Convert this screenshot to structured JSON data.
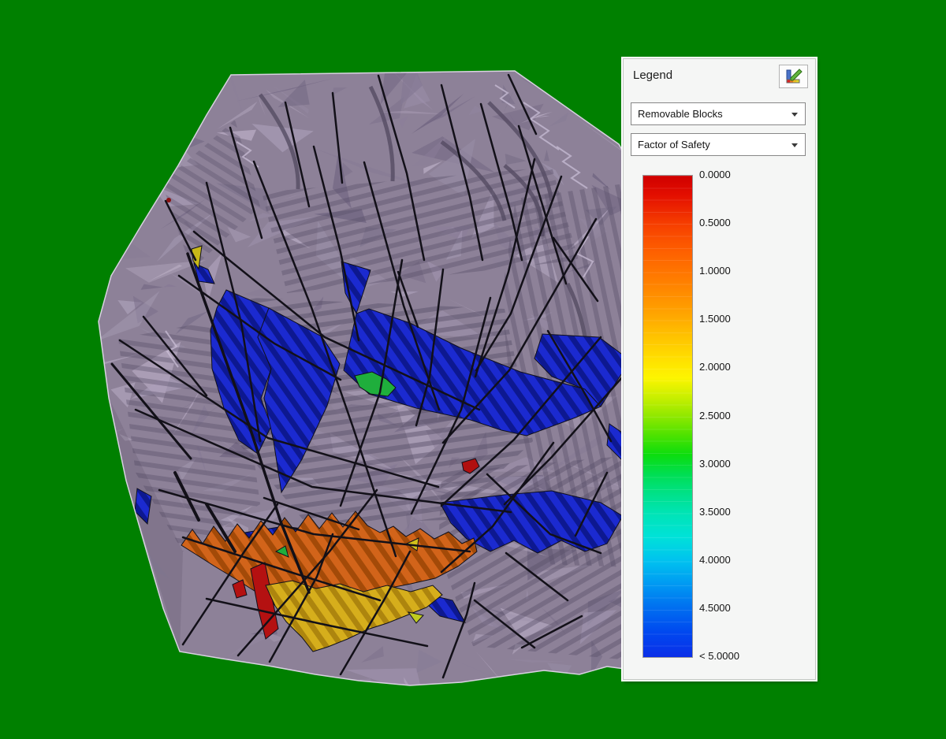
{
  "background_color": "#008000",
  "legend_panel": {
    "title": "Legend",
    "settings_icon": "legend-edit-icon",
    "dropdowns": [
      {
        "value": "Removable Blocks"
      },
      {
        "value": "Factor of Safety"
      }
    ],
    "color_scale": {
      "tick_labels": [
        "0.0000",
        "0.5000",
        "1.0000",
        "1.5000",
        "2.0000",
        "2.5000",
        "3.0000",
        "3.5000",
        "4.0000",
        "4.5000",
        "< 5.0000"
      ],
      "gradient_stops": [
        {
          "pos": 0,
          "color": "#cf0000"
        },
        {
          "pos": 4,
          "color": "#e30e00"
        },
        {
          "pos": 10,
          "color": "#f63e00"
        },
        {
          "pos": 16,
          "color": "#fe6100"
        },
        {
          "pos": 22,
          "color": "#ff7f00"
        },
        {
          "pos": 28,
          "color": "#ffa000"
        },
        {
          "pos": 33,
          "color": "#ffc000"
        },
        {
          "pos": 38,
          "color": "#ffdf00"
        },
        {
          "pos": 42,
          "color": "#fdf500"
        },
        {
          "pos": 46,
          "color": "#c9ef00"
        },
        {
          "pos": 50,
          "color": "#8fe800"
        },
        {
          "pos": 54,
          "color": "#4ce200"
        },
        {
          "pos": 58,
          "color": "#0cdd0e"
        },
        {
          "pos": 62,
          "color": "#00de52"
        },
        {
          "pos": 66,
          "color": "#00e187"
        },
        {
          "pos": 70,
          "color": "#00e4b4"
        },
        {
          "pos": 75,
          "color": "#00e2d8"
        },
        {
          "pos": 80,
          "color": "#00c2ef"
        },
        {
          "pos": 85,
          "color": "#0098f2"
        },
        {
          "pos": 90,
          "color": "#006df0"
        },
        {
          "pos": 95,
          "color": "#0047ef"
        },
        {
          "pos": 100,
          "color": "#0b2fe8"
        }
      ]
    }
  },
  "model_view": {
    "terrain_color": "#8d8198",
    "block_colors": {
      "red": "#c41414",
      "orange": "#d2641a",
      "yellow": "#d6ae1c",
      "green": "#1fae3c",
      "blue": "#1b2ad0"
    },
    "fracture_color": "#121018"
  }
}
